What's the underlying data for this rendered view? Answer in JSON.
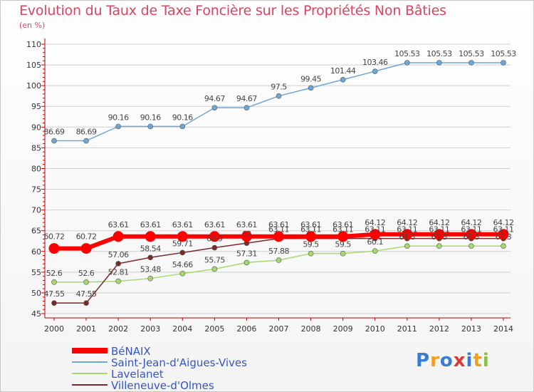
{
  "header": {
    "title": "Evolution du Taux de Taxe Foncière sur les Propriétés Non Bâties",
    "unit": "(en %)"
  },
  "branding": {
    "logo_text": "Proxiti"
  },
  "chart_data": {
    "type": "line",
    "title": "Evolution du Taux de Taxe Foncière sur les Propriétés Non Bâties",
    "ylabel": "(en %)",
    "xlabel": "",
    "ylim": [
      45,
      110
    ],
    "yticks": [
      45,
      50,
      55,
      60,
      65,
      70,
      75,
      80,
      85,
      90,
      95,
      100,
      105,
      110
    ],
    "categories": [
      "2000",
      "2001",
      "2002",
      "2003",
      "2004",
      "2005",
      "2006",
      "2007",
      "2008",
      "2009",
      "2010",
      "2011",
      "2012",
      "2013",
      "2014"
    ],
    "series": [
      {
        "name": "BéNAIX",
        "color": "#ff0000",
        "values": [
          60.72,
          60.72,
          63.61,
          63.61,
          63.61,
          63.61,
          63.61,
          63.61,
          63.61,
          63.61,
          64.12,
          64.12,
          64.12,
          64.12,
          64.12
        ],
        "labels": [
          "60.72",
          "60.72",
          "63.61",
          "63.61",
          "63.61",
          "63.61",
          "63.61",
          "63.61",
          "63.61",
          "63.61",
          "64.12",
          "64.12",
          "64.12",
          "64.12",
          "64.12"
        ]
      },
      {
        "name": "Saint-Jean-d'Aigues-Vives",
        "color": "#6ea6d6",
        "values": [
          86.69,
          86.69,
          90.16,
          90.16,
          90.16,
          94.67,
          94.67,
          97.5,
          99.45,
          101.44,
          103.46,
          105.53,
          105.53,
          105.53,
          105.53
        ],
        "labels": [
          "86.69",
          "86.69",
          "90.16",
          "90.16",
          "90.16",
          "94.67",
          "94.67",
          "97.5",
          "99.45",
          "101.44",
          "103.46",
          "105.53",
          "105.53",
          "105.53",
          "105.53"
        ]
      },
      {
        "name": "Lavelanet",
        "color": "#a6d86e",
        "values": [
          52.6,
          52.6,
          52.81,
          53.48,
          54.66,
          55.75,
          57.31,
          57.88,
          59.5,
          59.5,
          60.1,
          61.3,
          61.3,
          61.3,
          61.3
        ],
        "labels": [
          "52.6",
          "52.6",
          "52.81",
          "53.48",
          "54.66",
          "55.75",
          "57.31",
          "57.88",
          "59.5",
          "59.5",
          "60.1",
          "61.3",
          "61.3",
          "61.3",
          "61.3"
        ]
      },
      {
        "name": "Villeneuve-d'Olmes",
        "color": "#7a2a2a",
        "values": [
          47.55,
          47.55,
          57.06,
          58.54,
          59.71,
          60.9,
          62.0,
          63.11,
          63.11,
          63.11,
          63.11,
          63.11,
          63.11,
          63.11,
          63.11
        ],
        "labels": [
          "47.55",
          "47.55",
          "57.06",
          "58.54",
          "59.71",
          "60.9",
          "62",
          "63.11",
          "63.11",
          "63.11",
          "63.11",
          "63.11",
          "63.11",
          "63.11",
          "63.11"
        ]
      }
    ],
    "legend_position": "bottom-left"
  }
}
